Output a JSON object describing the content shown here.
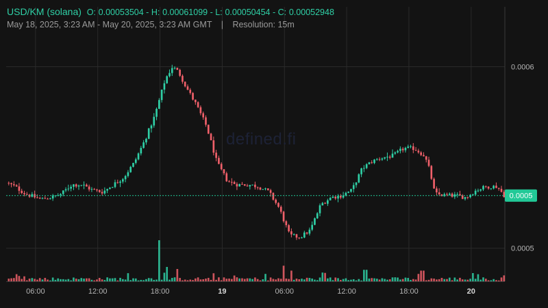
{
  "header": {
    "symbol": "USD/KM (solana)",
    "open_label": "O:",
    "open": "0.00053504",
    "high_label": "H:",
    "high": "0.00061099",
    "low_label": "L:",
    "low": "0.00050454",
    "close_label": "C:",
    "close": "0.00052948",
    "range": "May 18, 2025, 3:23 AM - May 20, 2025, 3:23 AM GMT",
    "separator": "|",
    "resolution": "Resolution: 15m"
  },
  "watermark": "defined.fi",
  "colors": {
    "background": "#131313",
    "up": "#2fd0a6",
    "down": "#f0606a",
    "grid": "#2a2a2a",
    "price_tag": "#22c997"
  },
  "price_tag": "0.0005",
  "chart_data": {
    "type": "candlestick",
    "interval": "15m",
    "y_axis": {
      "ticks": [
        {
          "value": 0.000601,
          "label": "0.0006"
        },
        {
          "value": 0.000501,
          "label": "0.0005"
        }
      ],
      "ylim": [
        0.0004835,
        0.000634
      ]
    },
    "x_axis": {
      "ticks": [
        {
          "label": "06:00",
          "hour": 6,
          "bold": false
        },
        {
          "label": "12:00",
          "hour": 12,
          "bold": false
        },
        {
          "label": "18:00",
          "hour": 18,
          "bold": false
        },
        {
          "label": "19",
          "hour": 24,
          "bold": true
        },
        {
          "label": "06:00",
          "hour": 30,
          "bold": false
        },
        {
          "label": "12:00",
          "hour": 36,
          "bold": false
        },
        {
          "label": "18:00",
          "hour": 42,
          "bold": false
        },
        {
          "label": "20",
          "hour": 48,
          "bold": true
        }
      ],
      "start_hour": 3.17,
      "end_hour": 51.25
    },
    "last_price": 0.00053,
    "keyframes": [
      [
        3.2,
        0.000537
      ],
      [
        4.0,
        0.000535
      ],
      [
        5.0,
        0.000531
      ],
      [
        6.5,
        0.000528
      ],
      [
        7.5,
        0.000529
      ],
      [
        8.5,
        0.000531
      ],
      [
        9.5,
        0.000536
      ],
      [
        10.5,
        0.000536
      ],
      [
        11.5,
        0.000533
      ],
      [
        12.5,
        0.000532
      ],
      [
        13.5,
        0.000536
      ],
      [
        14.5,
        0.00054
      ],
      [
        15.5,
        0.000548
      ],
      [
        16.5,
        0.00056
      ],
      [
        17.5,
        0.000574
      ],
      [
        18.5,
        0.000594
      ],
      [
        19.2,
        0.000601
      ],
      [
        19.8,
        0.000598
      ],
      [
        20.5,
        0.00059
      ],
      [
        21.5,
        0.00058
      ],
      [
        22.5,
        0.000568
      ],
      [
        23.5,
        0.000548
      ],
      [
        24.5,
        0.000538
      ],
      [
        25.5,
        0.000536
      ],
      [
        26.5,
        0.000536
      ],
      [
        27.5,
        0.000535
      ],
      [
        28.5,
        0.000532
      ],
      [
        29.5,
        0.000523
      ],
      [
        30.5,
        0.000508
      ],
      [
        31.5,
        0.000507
      ],
      [
        32.5,
        0.000511
      ],
      [
        33.5,
        0.000525
      ],
      [
        34.5,
        0.000529
      ],
      [
        35.5,
        0.00053
      ],
      [
        36.5,
        0.000533
      ],
      [
        37.5,
        0.000545
      ],
      [
        38.5,
        0.000549
      ],
      [
        39.5,
        0.000551
      ],
      [
        40.5,
        0.000552
      ],
      [
        41.5,
        0.000556
      ],
      [
        42.5,
        0.000556
      ],
      [
        43.5,
        0.000552
      ],
      [
        44.0,
        0.000544
      ],
      [
        44.5,
        0.000531
      ],
      [
        45.5,
        0.00053
      ],
      [
        46.5,
        0.00053
      ],
      [
        47.5,
        0.000529
      ],
      [
        48.5,
        0.000533
      ],
      [
        49.5,
        0.000535
      ],
      [
        50.5,
        0.000535
      ],
      [
        51.2,
        0.00053
      ]
    ],
    "volume_spikes": [
      {
        "hour": 18.0,
        "rel": 1.0
      },
      {
        "hour": 18.7,
        "rel": 0.35
      },
      {
        "hour": 19.6,
        "rel": 0.3
      },
      {
        "hour": 30.0,
        "rel": 0.38
      },
      {
        "hour": 30.6,
        "rel": 0.26
      },
      {
        "hour": 37.8,
        "rel": 0.28
      },
      {
        "hour": 43.3,
        "rel": 0.26
      },
      {
        "hour": 48.2,
        "rel": 0.2
      }
    ]
  }
}
